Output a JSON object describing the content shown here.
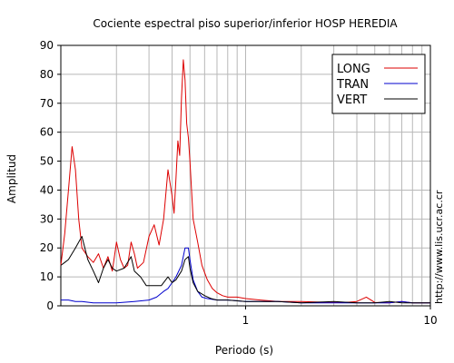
{
  "chart_data": {
    "type": "line",
    "title": "Cociente espectral piso superior/inferior  HOSP HEREDIA",
    "xlabel": "Periodo (s)",
    "ylabel": "Amplitud",
    "x_scale": "log",
    "xlim": [
      0.1,
      10
    ],
    "ylim": [
      0,
      90
    ],
    "xticks": [
      {
        "value": 1,
        "label": "1"
      },
      {
        "value": 10,
        "label": "10"
      }
    ],
    "yticks": [
      0,
      10,
      20,
      30,
      40,
      50,
      60,
      70,
      80,
      90
    ],
    "grid": true,
    "legend_position": "top-right",
    "side_note": "http://www.lis.ucr.ac.cr",
    "series": [
      {
        "name": "LONG",
        "color": "#dd0000",
        "x": [
          0.1,
          0.105,
          0.11,
          0.115,
          0.12,
          0.125,
          0.13,
          0.14,
          0.15,
          0.16,
          0.17,
          0.18,
          0.19,
          0.2,
          0.21,
          0.22,
          0.23,
          0.24,
          0.25,
          0.26,
          0.28,
          0.3,
          0.32,
          0.34,
          0.36,
          0.38,
          0.4,
          0.41,
          0.42,
          0.43,
          0.44,
          0.45,
          0.46,
          0.47,
          0.48,
          0.49,
          0.5,
          0.52,
          0.55,
          0.58,
          0.62,
          0.66,
          0.7,
          0.75,
          0.8,
          0.9,
          1.0,
          1.2,
          1.5,
          2,
          2.5,
          3,
          3.5,
          4,
          4.5,
          5,
          6,
          7,
          8,
          9,
          10
        ],
        "y": [
          14,
          25,
          40,
          55,
          47,
          30,
          20,
          17,
          15,
          18,
          13,
          17,
          12,
          22,
          16,
          13,
          14,
          22,
          18,
          13,
          15,
          24,
          28,
          21,
          30,
          47,
          38,
          32,
          44,
          57,
          52,
          72,
          85,
          78,
          63,
          58,
          50,
          30,
          22,
          14,
          9,
          6,
          4.5,
          3.5,
          3,
          3,
          2.5,
          2,
          1.5,
          1.5,
          1.3,
          1.2,
          1.2,
          1.5,
          3,
          1.2,
          1,
          1.5,
          1,
          1,
          1
        ]
      },
      {
        "name": "TRAN",
        "color": "#0000cc",
        "x": [
          0.1,
          0.11,
          0.12,
          0.13,
          0.15,
          0.18,
          0.2,
          0.25,
          0.3,
          0.33,
          0.36,
          0.38,
          0.4,
          0.42,
          0.45,
          0.47,
          0.49,
          0.5,
          0.52,
          0.55,
          0.58,
          0.62,
          0.7,
          0.8,
          1.0,
          1.5,
          2,
          3,
          4,
          5,
          6,
          7,
          8,
          10
        ],
        "y": [
          2,
          2,
          1.5,
          1.5,
          1,
          1,
          1,
          1.5,
          2,
          3,
          5,
          6,
          8,
          10,
          14,
          20,
          20,
          16,
          9,
          5,
          3,
          2.5,
          2,
          2,
          1.5,
          1.5,
          1,
          1,
          1,
          1,
          1,
          1.5,
          1,
          1
        ]
      },
      {
        "name": "VERT",
        "color": "#000000",
        "x": [
          0.1,
          0.105,
          0.11,
          0.12,
          0.13,
          0.14,
          0.15,
          0.16,
          0.17,
          0.18,
          0.19,
          0.2,
          0.22,
          0.24,
          0.25,
          0.27,
          0.29,
          0.31,
          0.33,
          0.35,
          0.38,
          0.4,
          0.42,
          0.45,
          0.47,
          0.49,
          0.5,
          0.52,
          0.55,
          0.6,
          0.65,
          0.7,
          0.8,
          1.0,
          1.5,
          2,
          3,
          4,
          5,
          6,
          7,
          8,
          10
        ],
        "y": [
          14,
          15,
          16,
          20,
          24,
          16,
          12,
          8,
          13,
          16,
          13,
          12,
          13,
          17,
          12,
          10,
          7,
          7,
          7,
          7,
          10,
          8,
          9,
          12,
          16,
          17,
          13,
          8,
          5,
          3.5,
          2.5,
          2,
          2,
          1.5,
          1.5,
          1,
          1.5,
          1,
          1,
          1.5,
          1,
          1,
          1
        ]
      }
    ]
  }
}
